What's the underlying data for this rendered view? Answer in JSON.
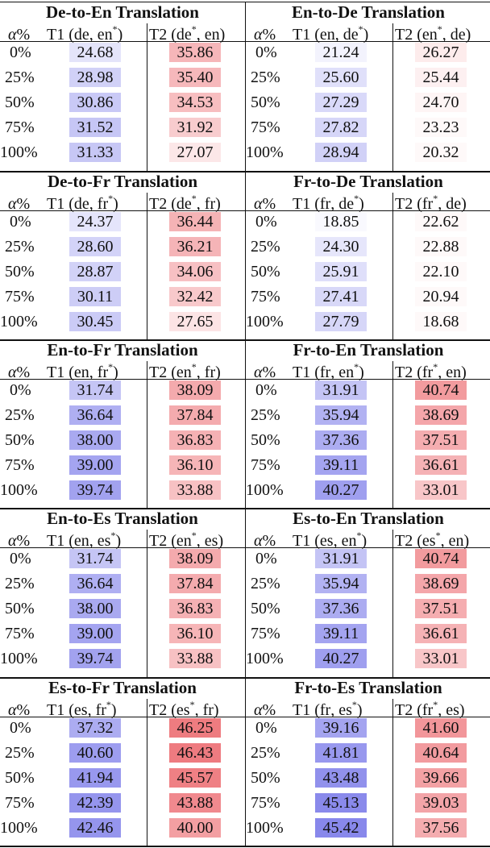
{
  "column_labels": {
    "alpha": "α",
    "percent": "%"
  },
  "sections": [
    {
      "left": {
        "title": "De-to-En Translation",
        "t1": {
          "name": "T1",
          "a": "de",
          "b": "en",
          "star": "b"
        },
        "t2": {
          "name": "T2",
          "a": "de",
          "b": "en",
          "star": "a"
        },
        "rows": [
          {
            "alpha": "0%",
            "t1": "24.68",
            "t2": "35.86"
          },
          {
            "alpha": "25%",
            "t1": "28.98",
            "t2": "35.40"
          },
          {
            "alpha": "50%",
            "t1": "30.86",
            "t2": "34.53"
          },
          {
            "alpha": "75%",
            "t1": "31.52",
            "t2": "31.92"
          },
          {
            "alpha": "100%",
            "t1": "31.33",
            "t2": "27.07"
          }
        ]
      },
      "right": {
        "title": "En-to-De Translation",
        "t1": {
          "name": "T1",
          "a": "en",
          "b": "de",
          "star": "b"
        },
        "t2": {
          "name": "T2",
          "a": "en",
          "b": "de",
          "star": "a"
        },
        "rows": [
          {
            "alpha": "0%",
            "t1": "21.24",
            "t2": "26.27"
          },
          {
            "alpha": "25%",
            "t1": "25.60",
            "t2": "25.44"
          },
          {
            "alpha": "50%",
            "t1": "27.29",
            "t2": "24.70"
          },
          {
            "alpha": "75%",
            "t1": "27.82",
            "t2": "23.23"
          },
          {
            "alpha": "100%",
            "t1": "28.94",
            "t2": "20.32"
          }
        ]
      }
    },
    {
      "left": {
        "title": "De-to-Fr Translation",
        "t1": {
          "name": "T1",
          "a": "de",
          "b": "fr",
          "star": "b"
        },
        "t2": {
          "name": "T2",
          "a": "de",
          "b": "fr",
          "star": "a"
        },
        "rows": [
          {
            "alpha": "0%",
            "t1": "24.37",
            "t2": "36.44"
          },
          {
            "alpha": "25%",
            "t1": "28.60",
            "t2": "36.21"
          },
          {
            "alpha": "50%",
            "t1": "28.87",
            "t2": "34.06"
          },
          {
            "alpha": "75%",
            "t1": "30.11",
            "t2": "32.42"
          },
          {
            "alpha": "100%",
            "t1": "30.45",
            "t2": "27.65"
          }
        ]
      },
      "right": {
        "title": "Fr-to-De Translation",
        "t1": {
          "name": "T1",
          "a": "fr",
          "b": "de",
          "star": "b"
        },
        "t2": {
          "name": "T2",
          "a": "fr",
          "b": "de",
          "star": "a"
        },
        "rows": [
          {
            "alpha": "0%",
            "t1": "18.85",
            "t2": "22.62"
          },
          {
            "alpha": "25%",
            "t1": "24.30",
            "t2": "22.88"
          },
          {
            "alpha": "50%",
            "t1": "25.91",
            "t2": "22.10"
          },
          {
            "alpha": "75%",
            "t1": "27.41",
            "t2": "20.94"
          },
          {
            "alpha": "100%",
            "t1": "27.79",
            "t2": "18.68"
          }
        ]
      }
    },
    {
      "left": {
        "title": "En-to-Fr Translation",
        "t1": {
          "name": "T1",
          "a": "en",
          "b": "fr",
          "star": "b"
        },
        "t2": {
          "name": "T2",
          "a": "en",
          "b": "fr",
          "star": "a"
        },
        "rows": [
          {
            "alpha": "0%",
            "t1": "31.74",
            "t2": "38.09"
          },
          {
            "alpha": "25%",
            "t1": "36.64",
            "t2": "37.84"
          },
          {
            "alpha": "50%",
            "t1": "38.00",
            "t2": "36.83"
          },
          {
            "alpha": "75%",
            "t1": "39.00",
            "t2": "36.10"
          },
          {
            "alpha": "100%",
            "t1": "39.74",
            "t2": "33.88"
          }
        ]
      },
      "right": {
        "title": "Fr-to-En Translation",
        "t1": {
          "name": "T1",
          "a": "fr",
          "b": "en",
          "star": "b"
        },
        "t2": {
          "name": "T2",
          "a": "fr",
          "b": "en",
          "star": "a"
        },
        "rows": [
          {
            "alpha": "0%",
            "t1": "31.91",
            "t2": "40.74"
          },
          {
            "alpha": "25%",
            "t1": "35.94",
            "t2": "38.69"
          },
          {
            "alpha": "50%",
            "t1": "37.36",
            "t2": "37.51"
          },
          {
            "alpha": "75%",
            "t1": "39.11",
            "t2": "36.61"
          },
          {
            "alpha": "100%",
            "t1": "40.27",
            "t2": "33.01"
          }
        ]
      }
    },
    {
      "left": {
        "title": "En-to-Es Translation",
        "t1": {
          "name": "T1",
          "a": "en",
          "b": "es",
          "star": "b"
        },
        "t2": {
          "name": "T2",
          "a": "en",
          "b": "es",
          "star": "a"
        },
        "rows": [
          {
            "alpha": "0%",
            "t1": "31.74",
            "t2": "38.09"
          },
          {
            "alpha": "25%",
            "t1": "36.64",
            "t2": "37.84"
          },
          {
            "alpha": "50%",
            "t1": "38.00",
            "t2": "36.83"
          },
          {
            "alpha": "75%",
            "t1": "39.00",
            "t2": "36.10"
          },
          {
            "alpha": "100%",
            "t1": "39.74",
            "t2": "33.88"
          }
        ]
      },
      "right": {
        "title": "Es-to-En Translation",
        "t1": {
          "name": "T1",
          "a": "es",
          "b": "en",
          "star": "b"
        },
        "t2": {
          "name": "T2",
          "a": "es",
          "b": "en",
          "star": "a"
        },
        "rows": [
          {
            "alpha": "0%",
            "t1": "31.91",
            "t2": "40.74"
          },
          {
            "alpha": "25%",
            "t1": "35.94",
            "t2": "38.69"
          },
          {
            "alpha": "50%",
            "t1": "37.36",
            "t2": "37.51"
          },
          {
            "alpha": "75%",
            "t1": "39.11",
            "t2": "36.61"
          },
          {
            "alpha": "100%",
            "t1": "40.27",
            "t2": "33.01"
          }
        ]
      }
    },
    {
      "left": {
        "title": "Es-to-Fr Translation",
        "t1": {
          "name": "T1",
          "a": "es",
          "b": "fr",
          "star": "b"
        },
        "t2": {
          "name": "T2",
          "a": "es",
          "b": "fr",
          "star": "a"
        },
        "rows": [
          {
            "alpha": "0%",
            "t1": "37.32",
            "t2": "46.25"
          },
          {
            "alpha": "25%",
            "t1": "40.60",
            "t2": "46.43"
          },
          {
            "alpha": "50%",
            "t1": "41.94",
            "t2": "45.57"
          },
          {
            "alpha": "75%",
            "t1": "42.39",
            "t2": "43.88"
          },
          {
            "alpha": "100%",
            "t1": "42.46",
            "t2": "40.00"
          }
        ]
      },
      "right": {
        "title": "Fr-to-Es Translation",
        "t1": {
          "name": "T1",
          "a": "fr",
          "b": "es",
          "star": "b"
        },
        "t2": {
          "name": "T2",
          "a": "fr",
          "b": "es",
          "star": "a"
        },
        "rows": [
          {
            "alpha": "0%",
            "t1": "39.16",
            "t2": "41.60"
          },
          {
            "alpha": "25%",
            "t1": "41.81",
            "t2": "40.64"
          },
          {
            "alpha": "50%",
            "t1": "43.48",
            "t2": "39.66"
          },
          {
            "alpha": "75%",
            "t1": "45.13",
            "t2": "39.03"
          },
          {
            "alpha": "100%",
            "t1": "45.42",
            "t2": "37.56"
          }
        ]
      }
    }
  ],
  "colors": {
    "t1_shade": "#6b6be6",
    "t2_shade": "#ea5a60"
  }
}
